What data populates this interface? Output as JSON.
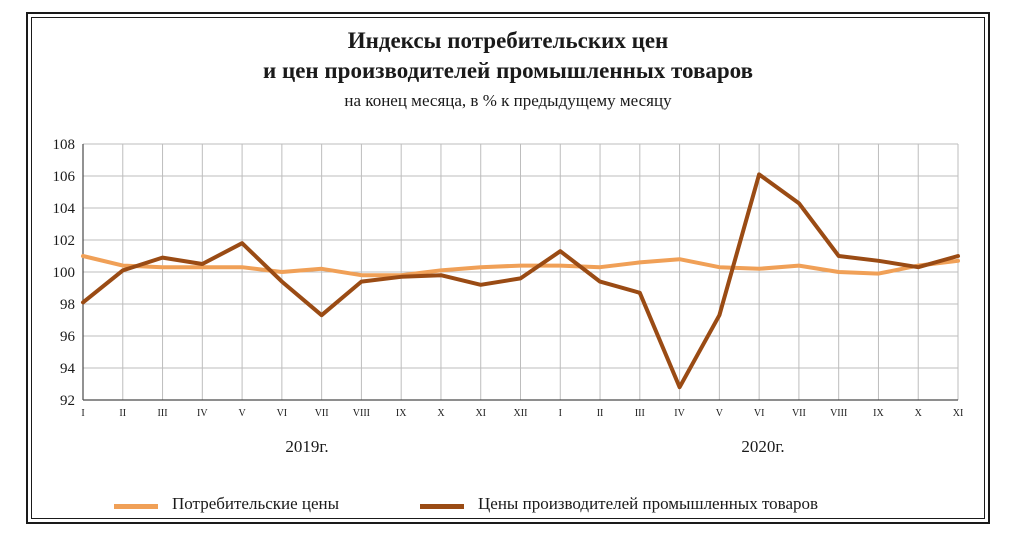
{
  "chart_data": {
    "type": "line",
    "title": "Индексы потребительских цен",
    "title_line2": "и цен производителей промышленных товаров",
    "subtitle": "на конец месяца, в % к предыдущему месяцу",
    "xlabel": "",
    "ylabel": "",
    "categories": [
      "I",
      "II",
      "III",
      "IV",
      "V",
      "VI",
      "VII",
      "VIII",
      "IX",
      "X",
      "XI",
      "XII",
      "I",
      "II",
      "III",
      "IV",
      "V",
      "VI",
      "VII",
      "VIII",
      "IX",
      "X",
      "XI"
    ],
    "year_labels": [
      "2019г.",
      "2020г."
    ],
    "ylim": [
      92,
      108
    ],
    "yticks": [
      92,
      94,
      96,
      98,
      100,
      102,
      104,
      106,
      108
    ],
    "grid": true,
    "legend_position": "bottom",
    "series": [
      {
        "name": "Потребительские цены",
        "color": "#F0A057",
        "values": [
          101.0,
          100.4,
          100.3,
          100.3,
          100.3,
          100.0,
          100.2,
          99.8,
          99.8,
          100.1,
          100.3,
          100.4,
          100.4,
          100.3,
          100.6,
          100.8,
          100.3,
          100.2,
          100.4,
          100.0,
          99.9,
          100.4,
          100.7
        ]
      },
      {
        "name": "Цены производителей промышленных товаров",
        "color": "#9A4B14",
        "values": [
          98.1,
          100.1,
          100.9,
          100.5,
          101.8,
          99.4,
          97.3,
          99.4,
          99.7,
          99.8,
          99.2,
          99.6,
          101.3,
          99.4,
          98.7,
          92.8,
          97.3,
          106.1,
          104.3,
          101.0,
          100.7,
          100.3,
          101.0
        ]
      }
    ]
  }
}
